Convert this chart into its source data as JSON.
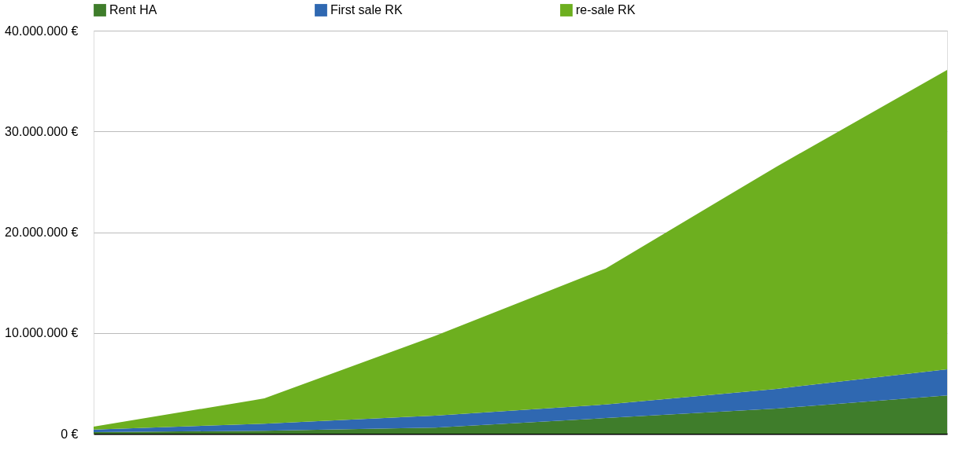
{
  "chart_data": {
    "type": "area",
    "stacked": true,
    "categories": [
      null,
      null,
      null,
      null,
      null,
      null
    ],
    "series": [
      {
        "name": "Rent HA",
        "color": "#3f7d2b",
        "values": [
          150000,
          300000,
          600000,
          1550000,
          2500000,
          3800000
        ]
      },
      {
        "name": "First sale RK",
        "color": "#2f68b1",
        "values": [
          250000,
          700000,
          1200000,
          1350000,
          1950000,
          2600000
        ]
      },
      {
        "name": "re-sale RK",
        "color": "#6daf1f",
        "values": [
          300000,
          2500000,
          7900000,
          13500000,
          22050000,
          29700000
        ]
      }
    ],
    "ylim": [
      0,
      40000000
    ],
    "yticks": [
      {
        "value": 0,
        "label": "0 €"
      },
      {
        "value": 10000000,
        "label": "10.000.000 €"
      },
      {
        "value": 20000000,
        "label": "20.000.000 €"
      },
      {
        "value": 30000000,
        "label": "30.000.000 €"
      },
      {
        "value": 40000000,
        "label": "40.000.000 €"
      }
    ],
    "grid": "y",
    "legend": "top",
    "tick_labels": "y"
  }
}
